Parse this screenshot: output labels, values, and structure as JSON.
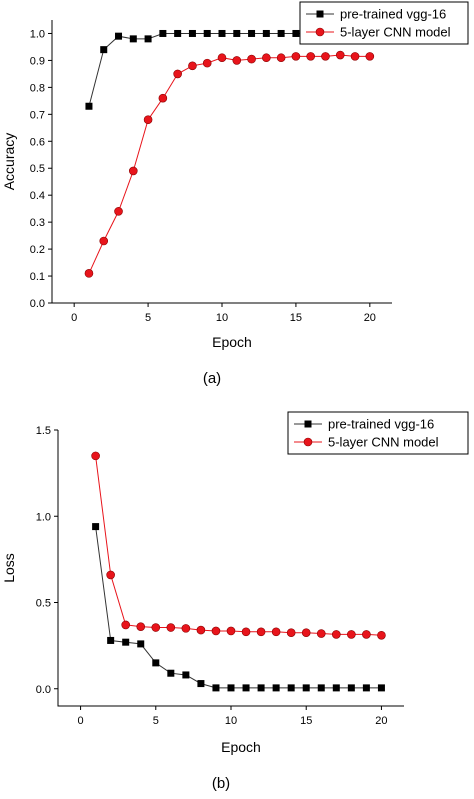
{
  "chart_data": [
    {
      "type": "line",
      "caption": "(a)",
      "xlabel": "Epoch",
      "ylabel": "Accuracy",
      "xlim": [
        -1.5,
        21.5
      ],
      "ylim": [
        0,
        1.05
      ],
      "xticks": [
        0,
        5,
        10,
        15,
        20
      ],
      "yticks": [
        0.0,
        0.1,
        0.2,
        0.3,
        0.4,
        0.5,
        0.6,
        0.7,
        0.8,
        0.9,
        1.0
      ],
      "x": [
        1,
        2,
        3,
        4,
        5,
        6,
        7,
        8,
        9,
        10,
        11,
        12,
        13,
        14,
        15,
        16,
        17,
        18,
        19,
        20
      ],
      "legend_position": "top-right",
      "series": [
        {
          "name": "pre-trained vgg-16",
          "marker": "square",
          "color": "#000000",
          "values": [
            0.73,
            0.94,
            0.99,
            0.98,
            0.98,
            1.0,
            1.0,
            1.0,
            1.0,
            1.0,
            1.0,
            1.0,
            1.0,
            1.0,
            1.0,
            1.0,
            1.0,
            1.0,
            1.0,
            1.0
          ]
        },
        {
          "name": "5-layer CNN model",
          "marker": "circle",
          "color": "#e8141b",
          "values": [
            0.11,
            0.23,
            0.34,
            0.49,
            0.68,
            0.76,
            0.85,
            0.88,
            0.89,
            0.91,
            0.9,
            0.905,
            0.91,
            0.91,
            0.915,
            0.915,
            0.915,
            0.92,
            0.915,
            0.915
          ]
        }
      ]
    },
    {
      "type": "line",
      "caption": "(b)",
      "xlabel": "Epoch",
      "ylabel": "Loss",
      "xlim": [
        -1.5,
        21.5
      ],
      "ylim": [
        -0.1,
        1.5
      ],
      "xticks": [
        0,
        5,
        10,
        15,
        20
      ],
      "yticks": [
        0.0,
        0.5,
        1.0,
        1.5
      ],
      "x": [
        1,
        2,
        3,
        4,
        5,
        6,
        7,
        8,
        9,
        10,
        11,
        12,
        13,
        14,
        15,
        16,
        17,
        18,
        19,
        20
      ],
      "legend_position": "top-right",
      "series": [
        {
          "name": "pre-trained vgg-16",
          "marker": "square",
          "color": "#000000",
          "values": [
            0.94,
            0.28,
            0.27,
            0.26,
            0.15,
            0.09,
            0.08,
            0.03,
            0.005,
            0.005,
            0.005,
            0.005,
            0.005,
            0.005,
            0.005,
            0.005,
            0.005,
            0.005,
            0.005,
            0.005
          ]
        },
        {
          "name": "5-layer CNN model",
          "marker": "circle",
          "color": "#e8141b",
          "values": [
            1.35,
            0.66,
            0.37,
            0.36,
            0.355,
            0.355,
            0.35,
            0.34,
            0.335,
            0.335,
            0.33,
            0.33,
            0.33,
            0.325,
            0.325,
            0.32,
            0.315,
            0.315,
            0.315,
            0.31
          ]
        }
      ]
    }
  ]
}
